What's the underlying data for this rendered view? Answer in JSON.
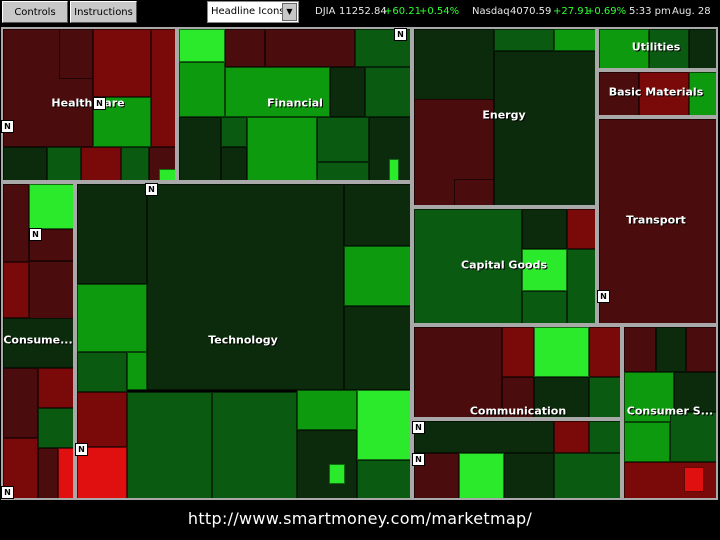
{
  "toolbar": {
    "controls_label": "Controls",
    "instructions_label": "Instructions",
    "view_select_value": "Headline Icons",
    "djia_label": "DJIA",
    "djia_value": "11252.84",
    "djia_change": "+60.21",
    "djia_pct": "+0.54%",
    "nasdaq_label": "Nasdaq",
    "nasdaq_value": "4070.59",
    "nasdaq_change": "+27.91",
    "nasdaq_pct": "+0.69%",
    "time": "5:33 pm",
    "date": "Aug. 28"
  },
  "sectors": {
    "health_care": "Health Care",
    "financial": "Financial",
    "energy": "Energy",
    "utilities": "Utilities",
    "basic_materials": "Basic Materials",
    "transport": "Transport",
    "capital_goods": "Capital Goods",
    "technology": "Technology",
    "consumer_1": "Consume...",
    "communication": "Communication",
    "consumer_2": "Consumer S..."
  },
  "news_badge": "N",
  "footer": {
    "url": "http://www.smartmoney.com/marketmap/"
  },
  "colors": {
    "strong_up": "#2bea2b",
    "up": "#0e9a0e",
    "mild_up": "#0b5a12",
    "flat": "#0c2a0c",
    "mild_down": "#4a0c0c",
    "down": "#7a0a0a",
    "strong_down": "#e01010",
    "sector_border": "#a9a9a9"
  }
}
